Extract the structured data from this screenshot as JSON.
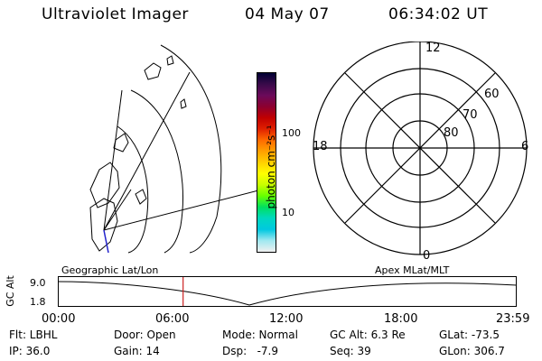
{
  "header": {
    "title": "Ultraviolet Imager",
    "date": "04 May 07",
    "time": "06:34:02 UT"
  },
  "colorbar": {
    "label": "photon cm⁻²s⁻¹",
    "ticks": [
      "100",
      "10"
    ],
    "colors": [
      "#000033",
      "#3a0a4a",
      "#6b0a5a",
      "#8c0030",
      "#c00000",
      "#e02000",
      "#ff6a00",
      "#ffa000",
      "#ffd000",
      "#ffff00",
      "#c8ff00",
      "#66ff00",
      "#00e060",
      "#00d8c0",
      "#00c8e0",
      "#a0e8f0",
      "#f0f0f0"
    ]
  },
  "polar": {
    "ring_labels": [
      "60",
      "70",
      "80"
    ],
    "mlt_labels": [
      "12",
      "18",
      "6",
      "0"
    ]
  },
  "timeline": {
    "axis_label": "GC Alt",
    "y_ticks": [
      "9.0",
      "1.8"
    ],
    "left_label": "Geographic Lat/Lon",
    "right_label": "Apex MLat/MLT",
    "x_ticks": [
      "00:00",
      "06:00",
      "12:00",
      "18:00",
      "23:59"
    ],
    "current_time_fraction": 0.273
  },
  "info": {
    "filt": "Flt: LBHL",
    "ip": "IP: 36.0",
    "door": "Door: Open",
    "gain": "Gain: 14",
    "mode": "Mode: Normal",
    "dsp": "Dsp:   -7.9",
    "gc_alt": "GC Alt: 6.3 Re",
    "seq": "Seq: 39",
    "glat": "GLat: -73.5",
    "glon": "GLon: 306.7"
  }
}
